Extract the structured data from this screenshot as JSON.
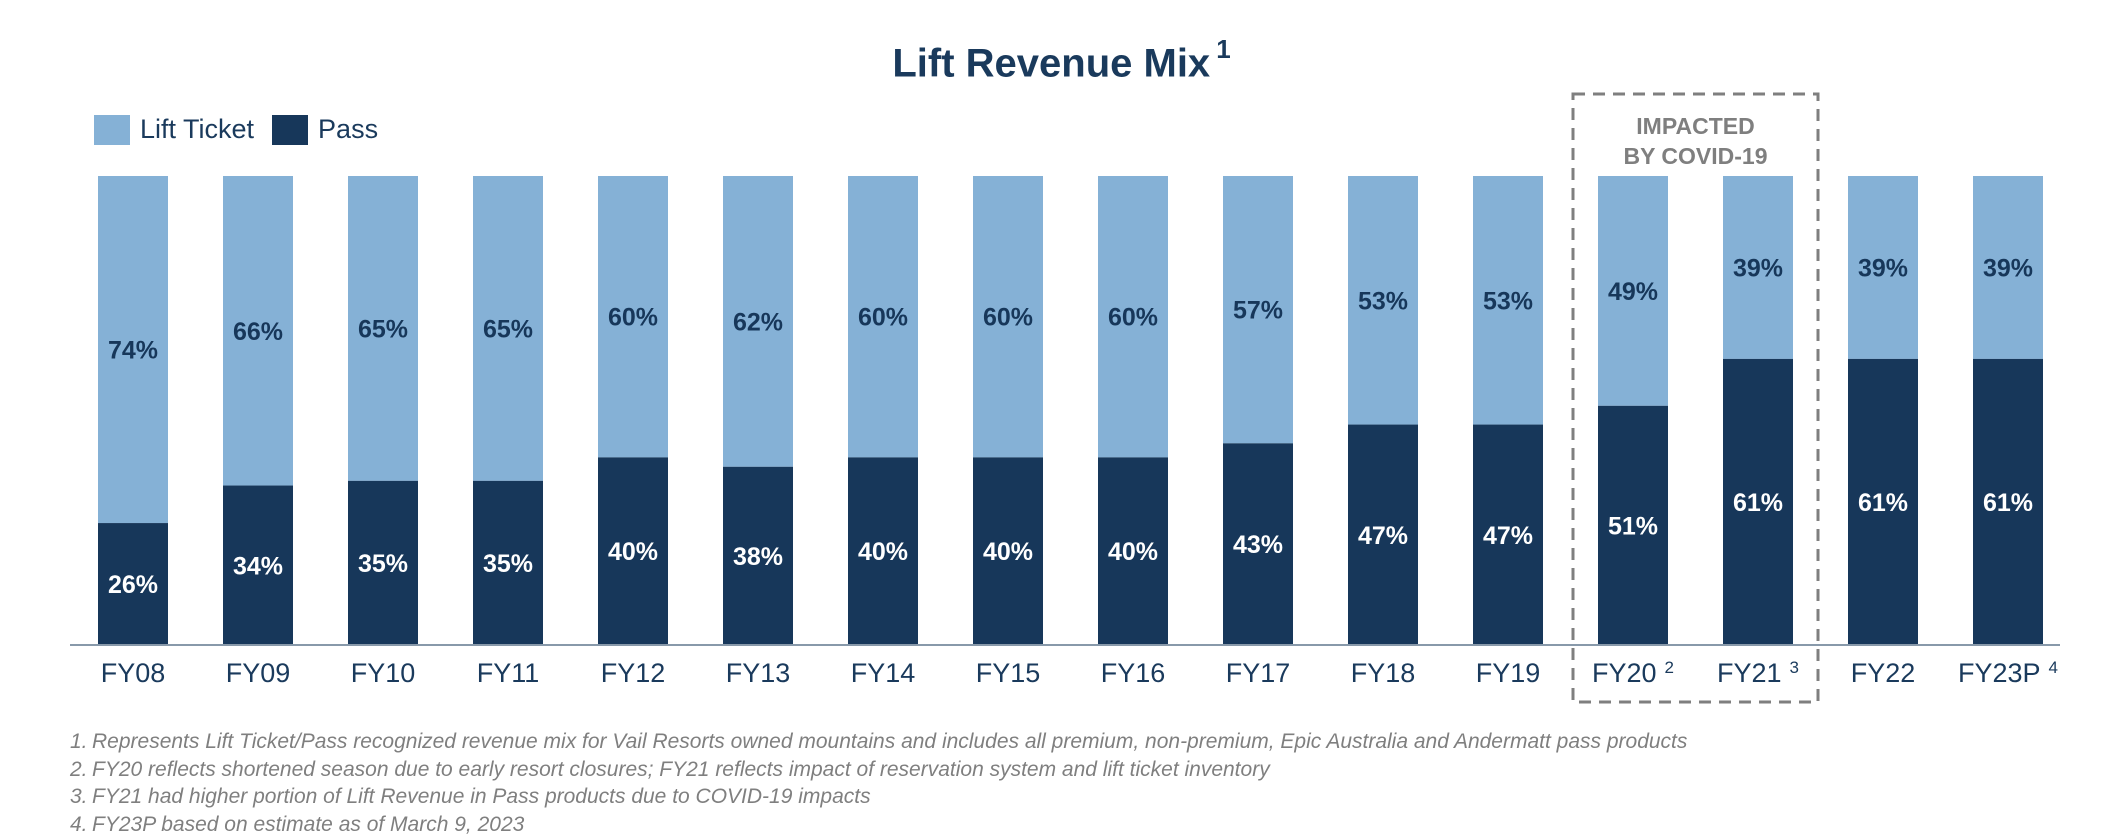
{
  "title": "Lift Revenue Mix",
  "title_sup": "1",
  "legend": [
    {
      "label": "Lift Ticket",
      "color": "#85b1d6"
    },
    {
      "label": "Pass",
      "color": "#17375a"
    }
  ],
  "covid_box_label": [
    "IMPACTED",
    "BY COVID-19"
  ],
  "chart_data": {
    "type": "bar",
    "stacked": true,
    "categories": [
      "FY08",
      "FY09",
      "FY10",
      "FY11",
      "FY12",
      "FY13",
      "FY14",
      "FY15",
      "FY16",
      "FY17",
      "FY18",
      "FY19",
      "FY20",
      "FY21",
      "FY22",
      "FY23P"
    ],
    "category_sups": [
      "",
      "",
      "",
      "",
      "",
      "",
      "",
      "",
      "",
      "",
      "",
      "",
      "2",
      "3",
      "",
      "4"
    ],
    "series": [
      {
        "name": "Pass",
        "color": "#17375a",
        "values": [
          26,
          34,
          35,
          35,
          40,
          38,
          40,
          40,
          40,
          43,
          47,
          47,
          51,
          61,
          61,
          61
        ]
      },
      {
        "name": "Lift Ticket",
        "color": "#85b1d6",
        "values": [
          74,
          66,
          65,
          65,
          60,
          62,
          60,
          60,
          60,
          57,
          53,
          53,
          49,
          39,
          39,
          39
        ]
      }
    ],
    "value_format": "percent",
    "ylim": [
      0,
      100
    ],
    "highlight": {
      "categories": [
        "FY20",
        "FY21"
      ],
      "label": "IMPACTED BY COVID-19"
    }
  },
  "footnotes": [
    {
      "num": "1.",
      "text": "Represents Lift Ticket/Pass recognized revenue mix for Vail Resorts owned mountains and includes all premium, non-premium, Epic Australia and Andermatt pass products"
    },
    {
      "num": "2.",
      "text": "FY20 reflects shortened season due to early resort closures; FY21 reflects impact of reservation system and lift ticket inventory"
    },
    {
      "num": "3.",
      "text": "FY21 had higher portion of Lift Revenue in Pass products due to COVID-19 impacts"
    },
    {
      "num": "4.",
      "text": "FY23P based on estimate as of March 9, 2023"
    }
  ]
}
